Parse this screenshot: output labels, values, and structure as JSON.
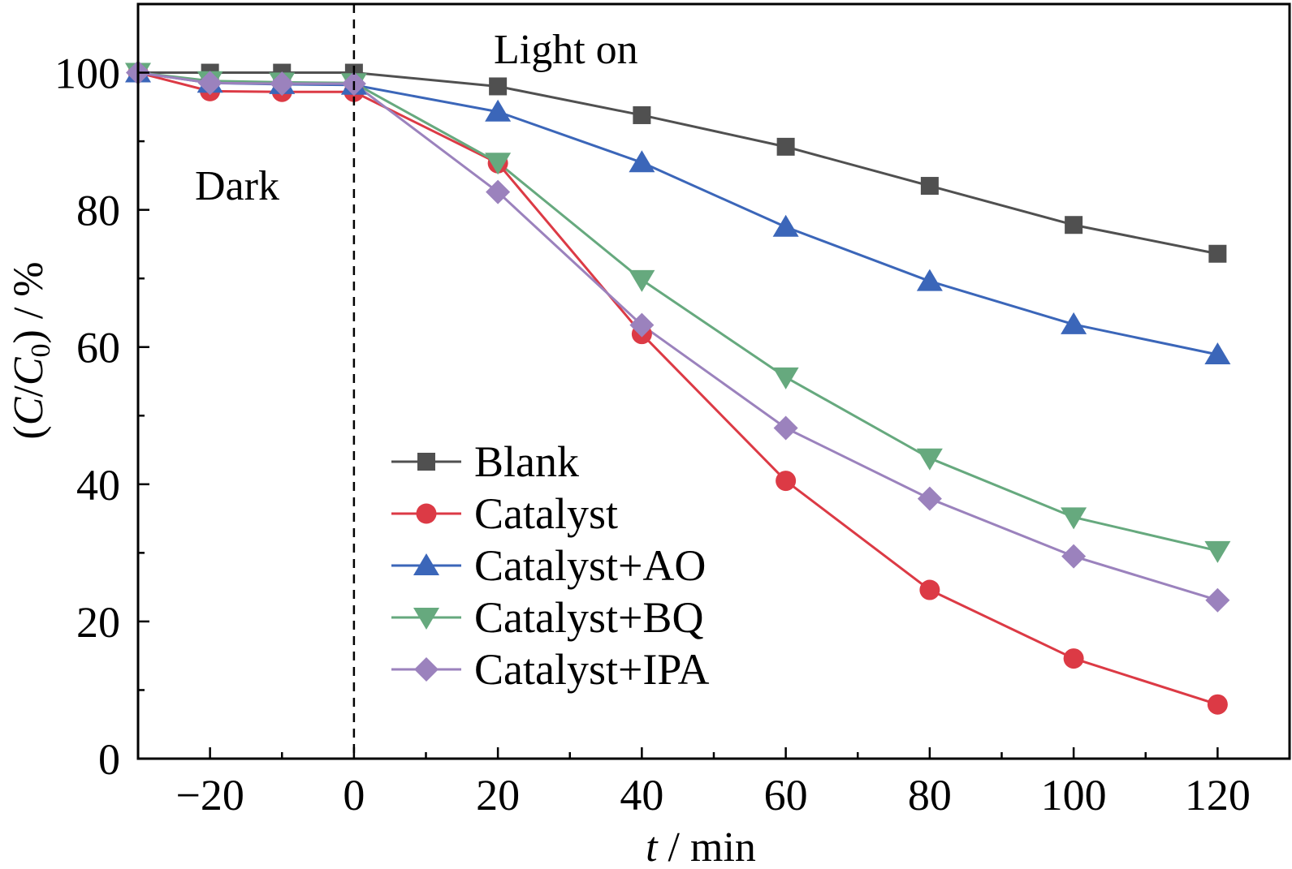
{
  "chart_data": {
    "type": "line",
    "x": [
      -30,
      -20,
      -10,
      0,
      20,
      40,
      60,
      80,
      100,
      120
    ],
    "xlim": [
      -30,
      130
    ],
    "ylim": [
      0,
      110
    ],
    "xticks": [
      -20,
      0,
      20,
      40,
      60,
      80,
      100,
      120
    ],
    "xtick_labels": [
      "−20",
      "0",
      "20",
      "40",
      "60",
      "80",
      "100",
      "120"
    ],
    "yticks": [
      0,
      20,
      40,
      60,
      80,
      100
    ],
    "ytick_labels": [
      "0",
      "20",
      "40",
      "60",
      "80",
      "100"
    ],
    "xlabel": {
      "italic": "t",
      "rest": " / min"
    },
    "ylabel": {
      "open": "(",
      "c": "C",
      "slash": "/",
      "c0": "C",
      "sub": "0",
      "close": ")",
      "rest": " / %"
    },
    "grid": false,
    "legend_position": "lower-left",
    "annotations": {
      "dark": "Dark",
      "light_on": "Light on",
      "divider_x": 0
    },
    "series": [
      {
        "name": "Blank",
        "marker": "square",
        "color": "#505050",
        "values": [
          100,
          100,
          100,
          100,
          98,
          93.8,
          89.2,
          83.5,
          77.8,
          73.6
        ]
      },
      {
        "name": "Catalyst",
        "marker": "circle",
        "color": "#dc3a45",
        "values": [
          100,
          97.3,
          97.2,
          97.2,
          86.8,
          61.9,
          40.5,
          24.6,
          14.6,
          7.9
        ]
      },
      {
        "name": "Catalyst+AO",
        "marker": "triangle-up",
        "color": "#3b66b9",
        "values": [
          100,
          98.5,
          98.3,
          98.2,
          94.3,
          86.9,
          77.5,
          69.6,
          63.3,
          58.9
        ]
      },
      {
        "name": "Catalyst+BQ",
        "marker": "triangle-down",
        "color": "#66a97e",
        "values": [
          100,
          98.8,
          98.6,
          98.5,
          86.9,
          69.8,
          55.6,
          43.8,
          35.2,
          30.3
        ]
      },
      {
        "name": "Catalyst+IPA",
        "marker": "diamond",
        "color": "#9b82bd",
        "values": [
          100,
          98.5,
          98.4,
          98.4,
          82.6,
          63.2,
          48.2,
          37.9,
          29.5,
          23.1
        ]
      }
    ]
  }
}
